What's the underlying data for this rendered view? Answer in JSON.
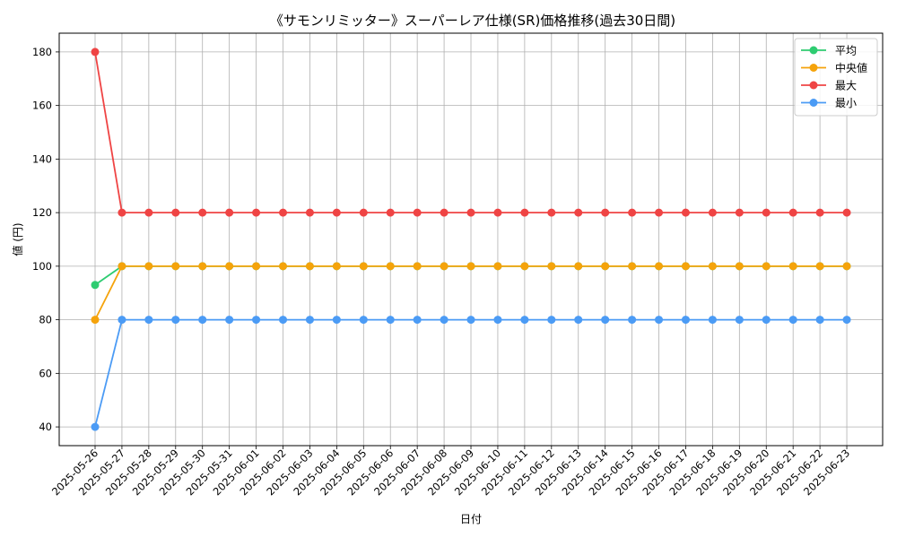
{
  "chart_data": {
    "type": "line",
    "title": "《サモンリミッター》スーパーレア仕様(SR)価格推移(過去30日間)",
    "xlabel": "日付",
    "ylabel": "値 (円)",
    "ylim": [
      33,
      187
    ],
    "yticks": [
      40,
      60,
      80,
      100,
      120,
      140,
      160,
      180
    ],
    "grid": true,
    "legend_position": "top-right",
    "categories": [
      "2025-05-26",
      "2025-05-27",
      "2025-05-28",
      "2025-05-29",
      "2025-05-30",
      "2025-05-31",
      "2025-06-01",
      "2025-06-02",
      "2025-06-03",
      "2025-06-04",
      "2025-06-05",
      "2025-06-06",
      "2025-06-07",
      "2025-06-08",
      "2025-06-09",
      "2025-06-10",
      "2025-06-11",
      "2025-06-12",
      "2025-06-13",
      "2025-06-14",
      "2025-06-15",
      "2025-06-16",
      "2025-06-17",
      "2025-06-18",
      "2025-06-19",
      "2025-06-20",
      "2025-06-21",
      "2025-06-22",
      "2025-06-23"
    ],
    "series": [
      {
        "name": "平均",
        "color": "#2ecc71",
        "values": [
          93,
          100,
          100,
          100,
          100,
          100,
          100,
          100,
          100,
          100,
          100,
          100,
          100,
          100,
          100,
          100,
          100,
          100,
          100,
          100,
          100,
          100,
          100,
          100,
          100,
          100,
          100,
          100,
          100
        ]
      },
      {
        "name": "中央値",
        "color": "#f5a30b",
        "values": [
          80,
          100,
          100,
          100,
          100,
          100,
          100,
          100,
          100,
          100,
          100,
          100,
          100,
          100,
          100,
          100,
          100,
          100,
          100,
          100,
          100,
          100,
          100,
          100,
          100,
          100,
          100,
          100,
          100
        ]
      },
      {
        "name": "最大",
        "color": "#ef4444",
        "values": [
          180,
          120,
          120,
          120,
          120,
          120,
          120,
          120,
          120,
          120,
          120,
          120,
          120,
          120,
          120,
          120,
          120,
          120,
          120,
          120,
          120,
          120,
          120,
          120,
          120,
          120,
          120,
          120,
          120
        ]
      },
      {
        "name": "最小",
        "color": "#4b9bf5",
        "values": [
          40,
          80,
          80,
          80,
          80,
          80,
          80,
          80,
          80,
          80,
          80,
          80,
          80,
          80,
          80,
          80,
          80,
          80,
          80,
          80,
          80,
          80,
          80,
          80,
          80,
          80,
          80,
          80,
          80
        ]
      }
    ]
  }
}
